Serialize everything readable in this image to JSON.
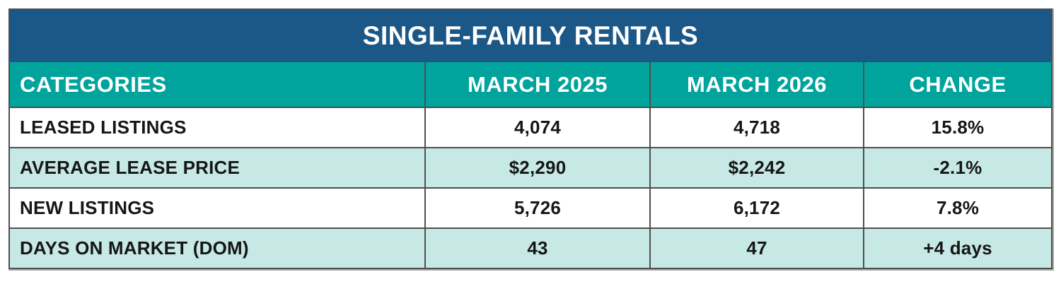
{
  "chart_data": {
    "type": "table",
    "title": "SINGLE-FAMILY RENTALS",
    "columns": [
      "CATEGORIES",
      "MARCH 2025",
      "MARCH 2026",
      "CHANGE"
    ],
    "rows": [
      [
        "LEASED LISTINGS",
        "4,074",
        "4,718",
        "15.8%"
      ],
      [
        "AVERAGE LEASE PRICE",
        "$2,290",
        "$2,242",
        "-2.1%"
      ],
      [
        "NEW LISTINGS",
        "5,726",
        "6,172",
        "7.8%"
      ],
      [
        "DAYS ON MARKET (DOM)",
        "43",
        "47",
        "+4 days"
      ]
    ]
  },
  "colors": {
    "title_bar_bg": "#1b5787",
    "header_row_bg": "#00a49c",
    "alt_row_bg": "#c7e9e5",
    "row_bg": "#ffffff",
    "border": "#4e4e4e",
    "header_text": "#ffffff",
    "body_text": "#161616"
  }
}
